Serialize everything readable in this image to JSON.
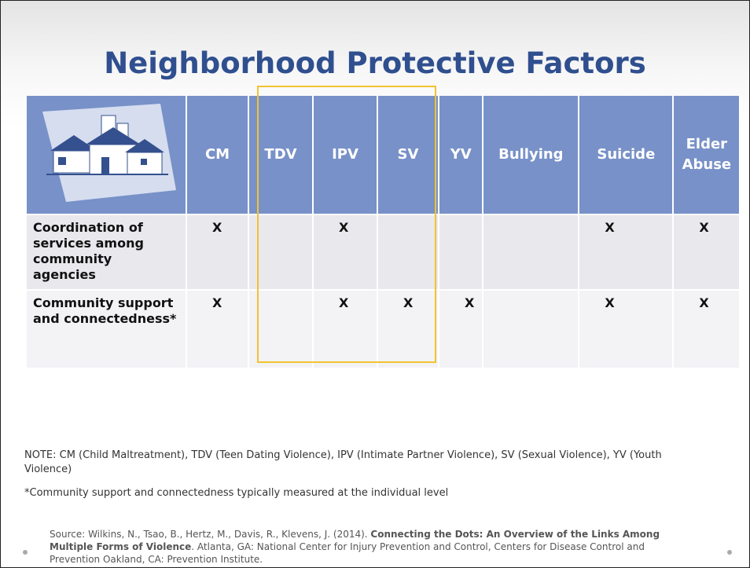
{
  "title": "Neighborhood Protective Factors",
  "table": {
    "columns": [
      "CM",
      "TDV",
      "IPV",
      "SV",
      "YV",
      "Bullying",
      "Suicide",
      "Elder Abuse"
    ],
    "rows": [
      {
        "label": "Coordination of services among community agencies",
        "cells": [
          "X",
          null,
          "X",
          null,
          null,
          null,
          "X",
          "X"
        ]
      },
      {
        "label": "Community support and connectedness*",
        "cells": [
          "X",
          null,
          "X",
          "X",
          "X",
          null,
          "X",
          "X"
        ]
      }
    ]
  },
  "notes": [
    "NOTE: CM (Child Maltreatment), TDV (Teen Dating Violence), IPV (Intimate Partner Violence), SV (Sexual Violence), YV (Youth Violence)",
    "*Community support and connectedness typically measured at the individual level"
  ],
  "source": {
    "prefix": "Source: Wilkins, N., Tsao, B., Hertz, M., Davis, R., Klevens, J. (2014). ",
    "bold": "Connecting the Dots: An Overview of the Links Among Multiple Forms of Violence",
    "suffix": ". Atlanta, GA: National Center for Injury Prevention and Control, Centers for Disease Control and Prevention Oakland, CA: Prevention Institute."
  }
}
